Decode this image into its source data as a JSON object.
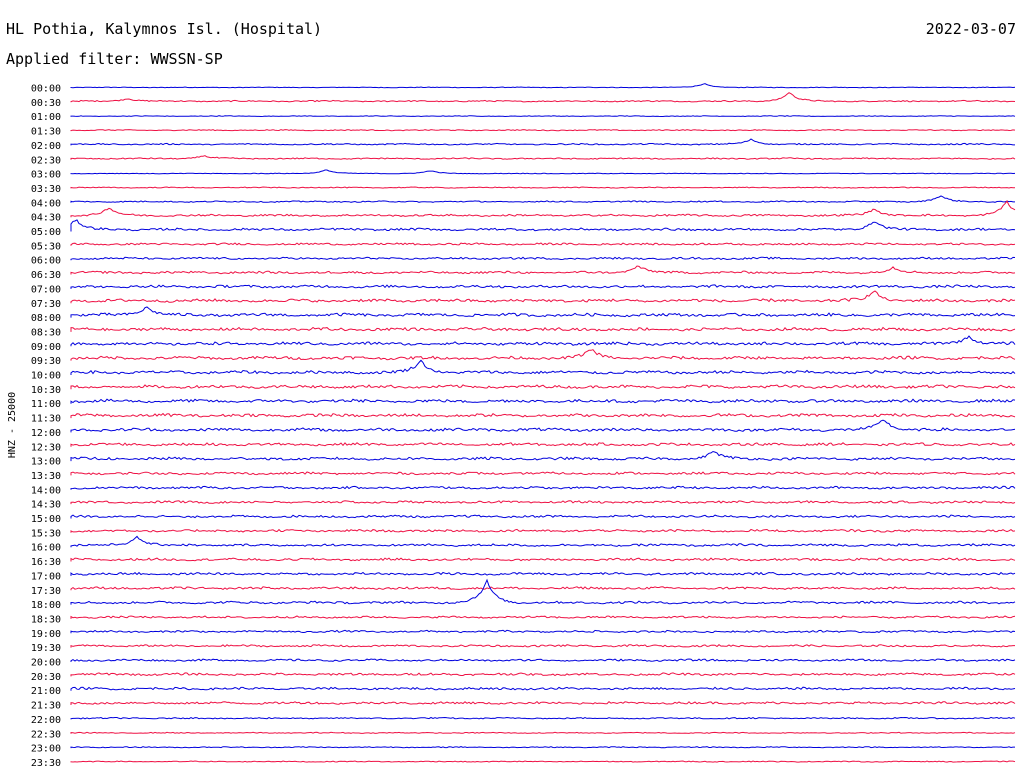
{
  "header": {
    "station": "HL Pothia, Kalymnos Isl. (Hospital)",
    "date": "2022-03-07",
    "filter": "Applied filter: WWSSN-SP"
  },
  "chart_data": {
    "type": "line",
    "title": "HL Pothia, Kalymnos Isl. (Hospital)",
    "subtitle": "Applied filter: WWSSN-SP",
    "date": "2022-03-07",
    "ylabel": "HNZ - 25000",
    "row_labels": [
      "00:00",
      "00:30",
      "01:00",
      "01:30",
      "02:00",
      "02:30",
      "03:00",
      "03:30",
      "04:00",
      "04:30",
      "05:00",
      "05:30",
      "06:00",
      "06:30",
      "07:00",
      "07:30",
      "08:00",
      "08:30",
      "09:00",
      "09:30",
      "10:00",
      "10:30",
      "11:00",
      "11:30",
      "12:00",
      "12:30",
      "13:00",
      "13:30",
      "14:00",
      "14:30",
      "15:00",
      "15:30",
      "16:00",
      "16:30",
      "17:00",
      "17:30",
      "18:00",
      "18:30",
      "19:00",
      "19:30",
      "20:00",
      "20:30",
      "21:00",
      "21:30",
      "22:00",
      "22:30",
      "23:00",
      "23:30"
    ],
    "colors": {
      "even": "#0000dd",
      "odd": "#ee1144"
    },
    "row_noise": [
      1,
      2,
      1,
      1.5,
      2,
      2,
      1,
      1.5,
      2,
      3,
      3.5,
      3,
      3,
      3.5,
      4,
      4.5,
      4.5,
      4.5,
      4.5,
      4.5,
      4.5,
      4.5,
      4.5,
      4.5,
      4.5,
      4,
      4,
      3.5,
      3.5,
      3.5,
      3.5,
      3.5,
      3.5,
      3.5,
      3.5,
      3.5,
      3.5,
      3,
      3,
      3,
      3,
      3.5,
      3.5,
      3.5,
      2,
      1.5,
      1.5,
      1.5
    ],
    "bursts": [
      {
        "row": 0,
        "t": 0.67,
        "a": 4
      },
      {
        "row": 1,
        "t": 0.76,
        "a": 9
      },
      {
        "row": 1,
        "t": 0.06,
        "a": 3
      },
      {
        "row": 4,
        "t": 0.72,
        "a": 5
      },
      {
        "row": 5,
        "t": 0.14,
        "a": 3
      },
      {
        "row": 6,
        "t": 0.27,
        "a": 4
      },
      {
        "row": 6,
        "t": 0.38,
        "a": 3
      },
      {
        "row": 8,
        "t": 0.92,
        "a": 6
      },
      {
        "row": 9,
        "t": 0.04,
        "a": 8
      },
      {
        "row": 9,
        "t": 0.85,
        "a": 7
      },
      {
        "row": 9,
        "t": 0.99,
        "a": 14
      },
      {
        "row": 10,
        "t": 0.005,
        "a": 10
      },
      {
        "row": 10,
        "t": 0.85,
        "a": 9
      },
      {
        "row": 13,
        "t": 0.6,
        "a": 7
      },
      {
        "row": 13,
        "t": 0.87,
        "a": 5
      },
      {
        "row": 15,
        "t": 0.85,
        "a": 10
      },
      {
        "row": 16,
        "t": 0.08,
        "a": 9
      },
      {
        "row": 18,
        "t": 0.95,
        "a": 8
      },
      {
        "row": 19,
        "t": 0.55,
        "a": 9
      },
      {
        "row": 20,
        "t": 0.37,
        "a": 12
      },
      {
        "row": 24,
        "t": 0.86,
        "a": 11
      },
      {
        "row": 26,
        "t": 0.68,
        "a": 8
      },
      {
        "row": 32,
        "t": 0.07,
        "a": 9
      },
      {
        "row": 36,
        "t": 0.44,
        "a": 22
      }
    ]
  }
}
